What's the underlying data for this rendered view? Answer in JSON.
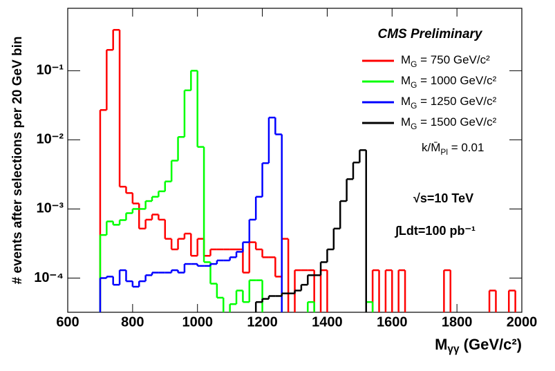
{
  "chart_data": {
    "type": "histogram",
    "y_label": "# events after selections per 20 GeV bin",
    "x_label": "Mγγ (GeV/c²)",
    "annotations": [
      "CMS Preliminary",
      "k/M̄Pl = 0.01",
      "√s=10 TeV",
      "∫Ldt=100 pb⁻¹"
    ],
    "legend": "top-right",
    "log_y": true,
    "bins": [
      600,
      620,
      640,
      660,
      680,
      700,
      720,
      740,
      760,
      780,
      800,
      820,
      840,
      860,
      880,
      900,
      920,
      940,
      960,
      980,
      1000,
      1020,
      1040,
      1060,
      1080,
      1100,
      1120,
      1140,
      1160,
      1180,
      1200,
      1220,
      1240,
      1260,
      1280,
      1300,
      1320,
      1340,
      1360,
      1380,
      1400,
      1420,
      1440,
      1460,
      1480,
      1500,
      1520,
      1540,
      1560,
      1580,
      1600,
      1620,
      1640,
      1660,
      1680,
      1700,
      1720,
      1740,
      1760,
      1780,
      1800,
      1820,
      1840,
      1860,
      1880,
      1900,
      1920,
      1940,
      1960,
      1980,
      2000
    ],
    "series": [
      {
        "name": "MG = 750 GeV/c²",
        "color": "#ff0000",
        "values": [
          null,
          null,
          null,
          null,
          null,
          0.027,
          0.2,
          0.39,
          0.0021,
          0.0017,
          0.0012,
          0.00052,
          0.0007,
          0.00083,
          0.0007,
          0.00037,
          0.00026,
          0.00037,
          0.00044,
          0.00021,
          0.00037,
          0.00021,
          0.00026,
          0.00026,
          0.00026,
          0.00026,
          0.00026,
          0.00012,
          0.00033,
          0.00026,
          0.0002,
          0.0002,
          0.000105,
          0.00037,
          null,
          0.00013,
          0.00013,
          0.00013,
          null,
          0.00013,
          null,
          null,
          null,
          null,
          null,
          null,
          null,
          0.00013,
          null,
          0.00013,
          null,
          0.00013,
          null,
          null,
          null,
          null,
          null,
          null,
          0.00013,
          null,
          null,
          null,
          null,
          null,
          null,
          6.6e-05,
          null,
          null,
          6.6e-05,
          null
        ]
      },
      {
        "name": "MG = 1000 GeV/c²",
        "color": "#00ff00",
        "values": [
          null,
          null,
          null,
          null,
          null,
          0.00042,
          0.00066,
          0.00059,
          0.00069,
          0.00087,
          0.001,
          0.001,
          0.0013,
          0.0015,
          0.0018,
          0.0025,
          0.005,
          0.011,
          0.052,
          0.1,
          0.0079,
          0.00017,
          8.3e-05,
          5.2e-05,
          null,
          4.2e-05,
          6.6e-05,
          4.5e-05,
          9.3e-05,
          9.3e-05,
          null,
          null,
          null,
          null,
          null,
          null,
          null,
          4.5e-05,
          null,
          null,
          null,
          null,
          null,
          null,
          null,
          null,
          4.5e-05,
          null,
          null,
          null,
          null,
          null,
          null,
          null,
          null,
          null,
          null,
          null,
          null,
          null,
          null,
          null,
          null,
          null,
          null,
          null,
          null,
          null,
          null,
          null
        ]
      },
      {
        "name": "MG = 1250 GeV/c²",
        "color": "#0000ff",
        "values": [
          null,
          null,
          null,
          null,
          null,
          0.0001,
          0.000105,
          8e-05,
          0.00013,
          9e-05,
          7.5e-05,
          9e-05,
          0.00011,
          0.00012,
          0.00012,
          0.00012,
          0.00013,
          0.00012,
          0.00016,
          0.00016,
          0.00015,
          0.00015,
          0.00016,
          0.00018,
          0.00018,
          0.0002,
          0.00024,
          0.00033,
          0.0007,
          0.0015,
          0.0046,
          0.021,
          0.012,
          null,
          null,
          null,
          null,
          null,
          null,
          null,
          null,
          null,
          null,
          null,
          null,
          null,
          null,
          null,
          null,
          null,
          null,
          null,
          null,
          null,
          null,
          null,
          null,
          null,
          null,
          null,
          null,
          null,
          null,
          null,
          null,
          null,
          null,
          null,
          null,
          null
        ]
      },
      {
        "name": "MG = 1500 GeV/c²",
        "color": "#000000",
        "values": [
          null,
          null,
          null,
          null,
          null,
          null,
          null,
          null,
          null,
          null,
          null,
          null,
          null,
          null,
          null,
          null,
          null,
          null,
          null,
          null,
          null,
          null,
          null,
          null,
          null,
          null,
          null,
          null,
          null,
          4.5e-05,
          5e-05,
          5.5e-05,
          5.5e-05,
          6e-05,
          6e-05,
          6.6e-05,
          8e-05,
          0.00011,
          0.00011,
          0.00017,
          0.00026,
          0.00052,
          0.0013,
          0.0027,
          0.0047,
          0.0071,
          null,
          null,
          null,
          null,
          null,
          null,
          null,
          null,
          null,
          null,
          null,
          null,
          null,
          null,
          null,
          null,
          null,
          null,
          null,
          null,
          null,
          null,
          null,
          null
        ]
      }
    ],
    "xlim": [
      600,
      2000
    ],
    "xticks": [
      600,
      800,
      1000,
      1200,
      1400,
      1600,
      1800,
      2000
    ],
    "ylim": [
      3.2e-05,
      0.8
    ],
    "yticks": [
      {
        "value": 0.0001,
        "label": "10⁻⁴"
      },
      {
        "value": 0.001,
        "label": "10⁻³"
      },
      {
        "value": 0.01,
        "label": "10⁻²"
      },
      {
        "value": 0.1,
        "label": "10⁻¹"
      }
    ]
  }
}
